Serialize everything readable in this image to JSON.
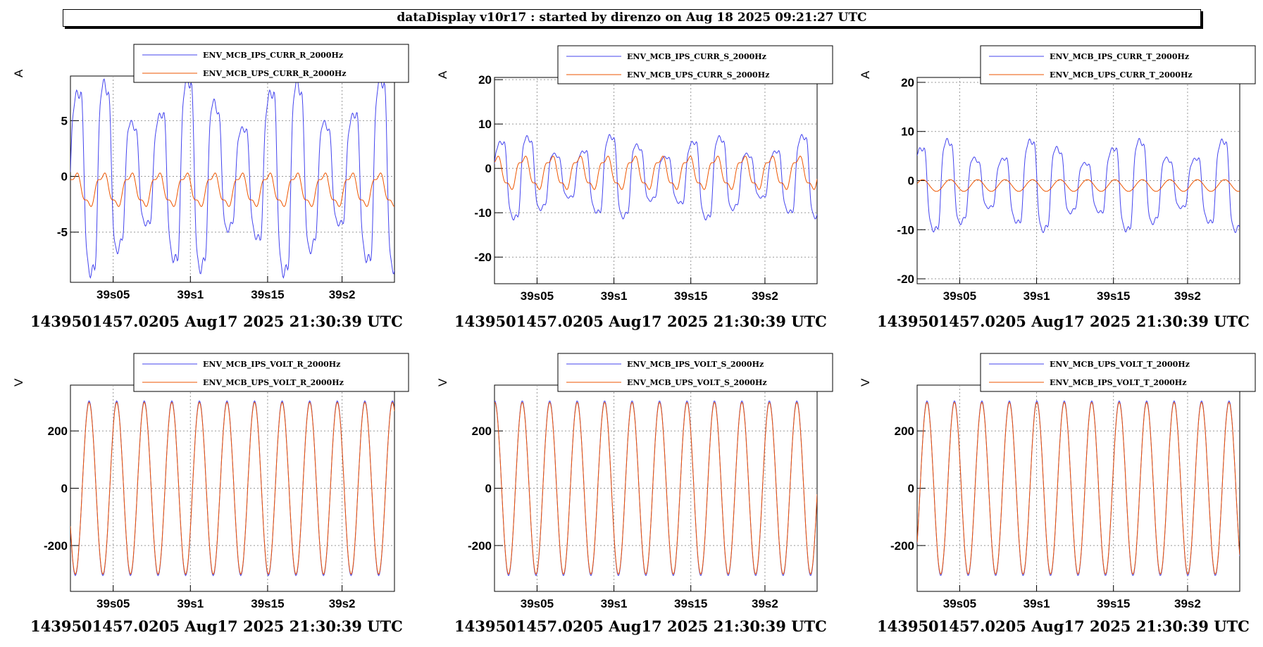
{
  "header": {
    "title": "dataDisplay v10r17 : started by direnzo on Aug 18 2025 09:21:27 UTC"
  },
  "colors": {
    "ips": "#4444ee",
    "ups": "#ee5500",
    "grid": "#999999",
    "axis": "#000000"
  },
  "footers": [
    "1439501457.0205 Aug17 2025 21:30:39 UTC",
    "1439501457.0205 Aug17 2025 21:30:39 UTC",
    "1439501457.0205 Aug17 2025 21:30:39 UTC",
    "1439501457.0205 Aug17 2025 21:30:39 UTC",
    "1439501457.0205 Aug17 2025 21:30:39 UTC",
    "1439501457.0205 Aug17 2025 21:30:39 UTC"
  ],
  "chart_data": [
    {
      "type": "line",
      "ylabel": "A",
      "xlim": [
        0,
        0.235
      ],
      "ylim": [
        -9.5,
        9
      ],
      "xticks": [
        {
          "v": 0.031,
          "label": "39s05"
        },
        {
          "v": 0.087,
          "label": "39s1"
        },
        {
          "v": 0.143,
          "label": "39s15"
        },
        {
          "v": 0.197,
          "label": "39s2"
        }
      ],
      "yticks": [
        {
          "v": 5,
          "label": "5"
        },
        {
          "v": 0,
          "label": "0"
        },
        {
          "v": -5,
          "label": "-5"
        }
      ],
      "legend": [
        "ENV_MCB_IPS_CURR_R_2000Hz",
        "ENV_MCB_UPS_CURR_R_2000Hz"
      ],
      "series": [
        {
          "name": "ENV_MCB_IPS_CURR_R_2000Hz",
          "color": "#4444ee",
          "amplitude": 7.5,
          "offset": 0,
          "phase": 0.0,
          "period": 0.02,
          "distortion": "ips"
        },
        {
          "name": "ENV_MCB_UPS_CURR_R_2000Hz",
          "color": "#ee5500",
          "amplitude": 1.4,
          "offset": -1.2,
          "phase": 0.5,
          "period": 0.02,
          "distortion": "ups"
        }
      ]
    },
    {
      "type": "line",
      "ylabel": "A",
      "xlim": [
        0,
        0.235
      ],
      "ylim": [
        -26,
        20.5
      ],
      "xticks": [
        {
          "v": 0.031,
          "label": "39s05"
        },
        {
          "v": 0.087,
          "label": "39s1"
        },
        {
          "v": 0.143,
          "label": "39s15"
        },
        {
          "v": 0.197,
          "label": "39s2"
        }
      ],
      "yticks": [
        {
          "v": 20,
          "label": "20"
        },
        {
          "v": 10,
          "label": "10"
        },
        {
          "v": 0,
          "label": "0"
        },
        {
          "v": -10,
          "label": "-10"
        },
        {
          "v": -20,
          "label": "-20"
        }
      ],
      "legend": [
        "ENV_MCB_IPS_CURR_S_2000Hz",
        "ENV_MCB_UPS_CURR_S_2000Hz"
      ],
      "series": [
        {
          "name": "ENV_MCB_IPS_CURR_S_2000Hz",
          "color": "#4444ee",
          "amplitude": 8,
          "offset": -2,
          "phase": 0.2,
          "period": 0.02,
          "distortion": "ips"
        },
        {
          "name": "ENV_MCB_UPS_CURR_S_2000Hz",
          "color": "#ee5500",
          "amplitude": 3.5,
          "offset": -1,
          "phase": 1.2,
          "period": 0.02,
          "distortion": "ups"
        }
      ]
    },
    {
      "type": "line",
      "ylabel": "A",
      "xlim": [
        0,
        0.235
      ],
      "ylim": [
        -21,
        21
      ],
      "xticks": [
        {
          "v": 0.031,
          "label": "39s05"
        },
        {
          "v": 0.087,
          "label": "39s1"
        },
        {
          "v": 0.143,
          "label": "39s15"
        },
        {
          "v": 0.197,
          "label": "39s2"
        }
      ],
      "yticks": [
        {
          "v": 20,
          "label": "20"
        },
        {
          "v": 10,
          "label": "10"
        },
        {
          "v": 0,
          "label": "0"
        },
        {
          "v": -10,
          "label": "-10"
        },
        {
          "v": -20,
          "label": "-20"
        }
      ],
      "legend": [
        "ENV_MCB_IPS_CURR_T_2000Hz",
        "ENV_MCB_UPS_CURR_T_2000Hz"
      ],
      "series": [
        {
          "name": "ENV_MCB_IPS_CURR_T_2000Hz",
          "color": "#4444ee",
          "amplitude": 8,
          "offset": -1,
          "phase": 0.8,
          "period": 0.02,
          "distortion": "ips"
        },
        {
          "name": "ENV_MCB_UPS_CURR_T_2000Hz",
          "color": "#ee5500",
          "amplitude": 2,
          "offset": -1,
          "phase": 0.3,
          "period": 0.02,
          "distortion": "spike"
        }
      ]
    },
    {
      "type": "line",
      "ylabel": "V",
      "xlim": [
        0,
        0.235
      ],
      "ylim": [
        -360,
        360
      ],
      "xticks": [
        {
          "v": 0.031,
          "label": "39s05"
        },
        {
          "v": 0.087,
          "label": "39s1"
        },
        {
          "v": 0.143,
          "label": "39s15"
        },
        {
          "v": 0.197,
          "label": "39s2"
        }
      ],
      "yticks": [
        {
          "v": 200,
          "label": "200"
        },
        {
          "v": 0,
          "label": "0"
        },
        {
          "v": -200,
          "label": "-200"
        }
      ],
      "legend": [
        "ENV_MCB_IPS_VOLT_R_2000Hz",
        "ENV_MCB_UPS_VOLT_R_2000Hz"
      ],
      "series": [
        {
          "name": "ENV_MCB_IPS_VOLT_R_2000Hz",
          "color": "#4444ee",
          "amplitude": 305,
          "offset": 0,
          "phase": 3.6,
          "period": 0.02,
          "distortion": "volt"
        },
        {
          "name": "ENV_MCB_UPS_VOLT_R_2000Hz",
          "color": "#ee5500",
          "amplitude": 300,
          "offset": 0,
          "phase": 3.6,
          "period": 0.02,
          "distortion": "volt"
        }
      ]
    },
    {
      "type": "line",
      "ylabel": "V",
      "xlim": [
        0,
        0.235
      ],
      "ylim": [
        -360,
        360
      ],
      "xticks": [
        {
          "v": 0.031,
          "label": "39s05"
        },
        {
          "v": 0.087,
          "label": "39s1"
        },
        {
          "v": 0.143,
          "label": "39s15"
        },
        {
          "v": 0.197,
          "label": "39s2"
        }
      ],
      "yticks": [
        {
          "v": 200,
          "label": "200"
        },
        {
          "v": 0,
          "label": "0"
        },
        {
          "v": -200,
          "label": "-200"
        }
      ],
      "legend": [
        "ENV_MCB_IPS_VOLT_S_2000Hz",
        "ENV_MCB_UPS_VOLT_S_2000Hz"
      ],
      "series": [
        {
          "name": "ENV_MCB_IPS_VOLT_S_2000Hz",
          "color": "#4444ee",
          "amplitude": 305,
          "offset": 0,
          "phase": 1.5,
          "period": 0.02,
          "distortion": "volt"
        },
        {
          "name": "ENV_MCB_UPS_VOLT_S_2000Hz",
          "color": "#ee5500",
          "amplitude": 300,
          "offset": 0,
          "phase": 1.5,
          "period": 0.02,
          "distortion": "volt"
        }
      ]
    },
    {
      "type": "line",
      "ylabel": "V",
      "xlim": [
        0,
        0.235
      ],
      "ylim": [
        -360,
        360
      ],
      "xticks": [
        {
          "v": 0.031,
          "label": "39s05"
        },
        {
          "v": 0.087,
          "label": "39s1"
        },
        {
          "v": 0.143,
          "label": "39s15"
        },
        {
          "v": 0.197,
          "label": "39s2"
        }
      ],
      "yticks": [
        {
          "v": 200,
          "label": "200"
        },
        {
          "v": 0,
          "label": "0"
        },
        {
          "v": -200,
          "label": "-200"
        }
      ],
      "legend": [
        "ENV_MCB_UPS_VOLT_T_2000Hz",
        "ENV_MCB_IPS_VOLT_T_2000Hz"
      ],
      "series": [
        {
          "name": "ENV_MCB_UPS_VOLT_T_2000Hz",
          "color": "#4444ee",
          "amplitude": 305,
          "offset": 0,
          "phase": 5.6,
          "period": 0.02,
          "distortion": "volt"
        },
        {
          "name": "ENV_MCB_IPS_VOLT_T_2000Hz",
          "color": "#ee5500",
          "amplitude": 300,
          "offset": 0,
          "phase": 5.6,
          "period": 0.02,
          "distortion": "volt"
        }
      ]
    }
  ]
}
